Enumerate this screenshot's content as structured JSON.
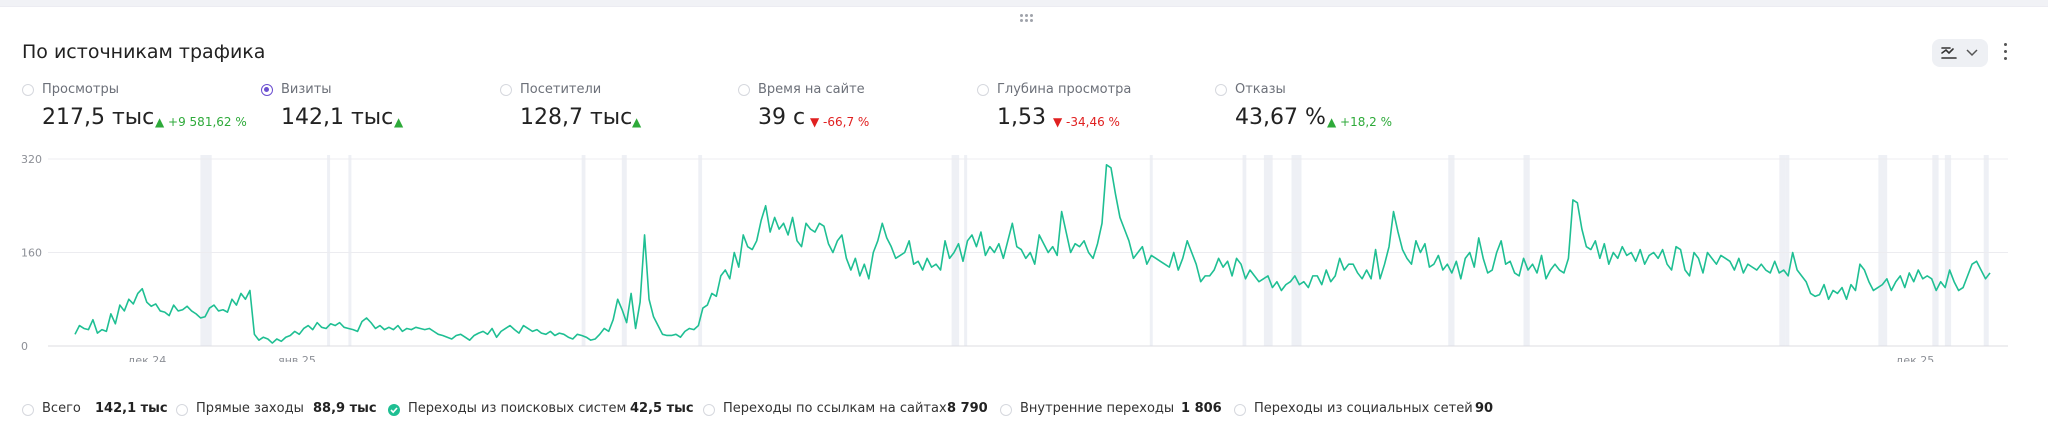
{
  "widget": {
    "title": "По источникам трафика",
    "tool_icon": "chart-settings-icon",
    "more_icon": "more-vertical-icon"
  },
  "metrics": [
    {
      "label": "Просмотры",
      "value": "217,5 тыс",
      "delta": "▲ +9 581,62 %",
      "trend": "up",
      "selected": false
    },
    {
      "label": "Визиты",
      "value": "142,1 тыс",
      "delta": "▲",
      "trend": "up",
      "selected": true
    },
    {
      "label": "Посетители",
      "value": "128,7 тыс",
      "delta": "▲",
      "trend": "up",
      "selected": false
    },
    {
      "label": "Время на сайте",
      "value": "39 с",
      "delta": "▼ -66,7 %",
      "trend": "down",
      "selected": false
    },
    {
      "label": "Глубина просмотра",
      "value": "1,53",
      "delta": "▼ -34,46 %",
      "trend": "down",
      "selected": false
    },
    {
      "label": "Отказы",
      "value": "43,67 %",
      "delta": "▲ +18,2 %",
      "trend": "up",
      "selected": false
    }
  ],
  "legend": [
    {
      "label": "Всего",
      "value": "142,1 тыс",
      "selected": false
    },
    {
      "label": "Прямые заходы",
      "value": "88,9 тыс",
      "selected": false
    },
    {
      "label": "Переходы из поисковых систем",
      "value": "42,5 тыс",
      "selected": true
    },
    {
      "label": "Переходы по ссылкам на сайтах",
      "value": "8 790",
      "selected": false
    },
    {
      "label": "Внутренние переходы",
      "value": "1 806",
      "selected": false
    },
    {
      "label": "Переходы из социальных сетей",
      "value": "90",
      "selected": false
    }
  ],
  "chart_data": {
    "type": "line",
    "series": [
      {
        "name": "Переходы из поисковых систем",
        "color": "#1fbf93",
        "values": [
          20,
          35,
          30,
          28,
          45,
          22,
          28,
          25,
          55,
          38,
          70,
          60,
          80,
          72,
          90,
          98,
          75,
          68,
          72,
          60,
          58,
          52,
          70,
          60,
          62,
          68,
          60,
          55,
          48,
          50,
          65,
          70,
          60,
          62,
          58,
          80,
          70,
          90,
          80,
          95,
          20,
          10,
          15,
          12,
          5,
          12,
          8,
          15,
          18,
          25,
          20,
          30,
          35,
          28,
          40,
          32,
          30,
          38,
          35,
          40,
          32,
          30,
          28,
          25,
          42,
          48,
          40,
          30,
          35,
          28,
          32,
          28,
          35,
          25,
          30,
          28,
          32,
          30,
          28,
          30,
          25,
          20,
          18,
          15,
          12,
          18,
          20,
          15,
          10,
          18,
          22,
          25,
          20,
          30,
          15,
          25,
          30,
          35,
          28,
          22,
          35,
          30,
          25,
          28,
          22,
          20,
          25,
          18,
          22,
          20,
          15,
          12,
          20,
          18,
          15,
          10,
          12,
          20,
          30,
          25,
          45,
          80,
          62,
          40,
          90,
          30,
          75,
          190,
          80,
          50,
          35,
          20,
          18,
          18,
          20,
          15,
          25,
          30,
          28,
          35,
          65,
          70,
          90,
          85,
          120,
          130,
          115,
          160,
          135,
          190,
          170,
          165,
          180,
          215,
          240,
          195,
          220,
          200,
          210,
          190,
          220,
          180,
          170,
          210,
          200,
          195,
          210,
          205,
          175,
          160,
          180,
          190,
          150,
          130,
          150,
          120,
          140,
          115,
          160,
          180,
          210,
          185,
          170,
          150,
          155,
          160,
          180,
          140,
          145,
          130,
          150,
          135,
          140,
          130,
          180,
          150,
          160,
          175,
          145,
          180,
          190,
          170,
          195,
          155,
          170,
          160,
          175,
          150,
          180,
          210,
          170,
          165,
          150,
          160,
          140,
          190,
          175,
          160,
          170,
          155,
          230,
          195,
          160,
          175,
          170,
          180,
          160,
          150,
          175,
          210,
          310,
          305,
          260,
          220,
          200,
          180,
          150,
          160,
          170,
          140,
          155,
          150,
          145,
          140,
          135,
          160,
          130,
          150,
          180,
          160,
          140,
          110,
          120,
          120,
          130,
          150,
          135,
          145,
          120,
          150,
          140,
          115,
          130,
          120,
          110,
          115,
          120,
          100,
          110,
          95,
          105,
          110,
          120,
          105,
          110,
          100,
          120,
          120,
          105,
          130,
          110,
          120,
          150,
          130,
          140,
          140,
          125,
          115,
          130,
          115,
          165,
          115,
          140,
          170,
          230,
          195,
          165,
          150,
          140,
          180,
          160,
          175,
          135,
          140,
          155,
          130,
          140,
          125,
          145,
          115,
          150,
          160,
          135,
          185,
          150,
          125,
          130,
          160,
          180,
          140,
          145,
          125,
          120,
          150,
          130,
          140,
          125,
          155,
          115,
          130,
          140,
          130,
          125,
          150,
          250,
          245,
          200,
          170,
          165,
          180,
          150,
          175,
          140,
          160,
          150,
          170,
          155,
          160,
          145,
          165,
          140,
          155,
          160,
          150,
          165,
          140,
          130,
          170,
          165,
          130,
          120,
          160,
          150,
          125,
          160,
          150,
          140,
          155,
          150,
          145,
          130,
          150,
          125,
          140,
          135,
          130,
          140,
          130,
          125,
          145,
          125,
          130,
          120,
          160,
          130,
          120,
          110,
          90,
          85,
          88,
          105,
          80,
          95,
          90,
          100,
          80,
          105,
          95,
          140,
          130,
          110,
          95,
          100,
          105,
          115,
          95,
          110,
          120,
          100,
          125,
          110,
          130,
          115,
          120,
          115,
          95,
          110,
          100,
          130,
          110,
          95,
          100,
          120,
          140,
          145,
          130,
          115,
          125
        ],
        "highlight_ranges": [
          [
            100,
            109
          ],
          [
            201,
            202
          ],
          [
            218,
            219
          ],
          [
            404,
            407
          ],
          [
            436,
            440
          ],
          [
            497,
            500
          ],
          [
            699,
            705
          ],
          [
            709,
            711
          ],
          [
            857,
            859
          ],
          [
            931,
            934
          ],
          [
            948,
            955
          ],
          [
            970,
            978
          ],
          [
            1095,
            1100
          ],
          [
            1155,
            1160
          ],
          [
            1359,
            1364
          ],
          [
            1364,
            1367
          ],
          [
            1438,
            1445
          ],
          [
            1481,
            1486
          ],
          [
            1491,
            1496
          ],
          [
            1522,
            1526
          ]
        ]
      }
    ],
    "x_tick_labels": [
      "дек 24",
      "янв 25",
      "дек 25"
    ],
    "y_ticks": [
      0,
      160,
      320
    ],
    "ylim": [
      0,
      320
    ],
    "grid": true
  }
}
